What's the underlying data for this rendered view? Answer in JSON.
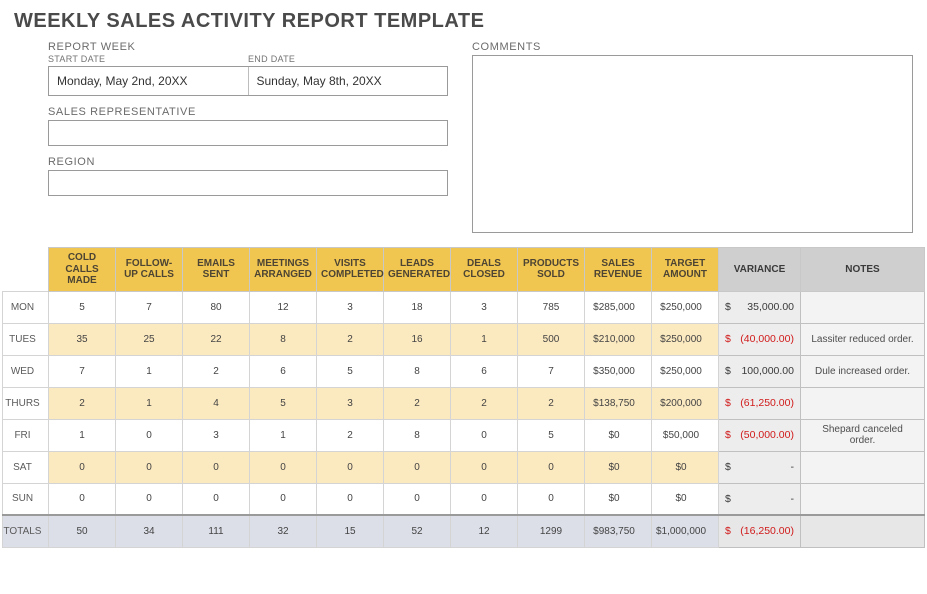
{
  "title": "WEEKLY SALES ACTIVITY REPORT TEMPLATE",
  "labels": {
    "report_week": "REPORT WEEK",
    "start_date": "START DATE",
    "end_date": "END DATE",
    "sales_rep": "SALES REPRESENTATIVE",
    "region": "REGION",
    "comments": "COMMENTS"
  },
  "fields": {
    "start_date": "Monday, May 2nd, 20XX",
    "end_date": "Sunday, May 8th, 20XX",
    "sales_rep": "",
    "region": "",
    "comments": ""
  },
  "colors": {
    "header_bg": "#f0c651",
    "gray_header_bg": "#cfcfcf",
    "row_odd_bg": "#fbe9c0",
    "variance_bg": "#ededed",
    "notes_bg": "#f3f3f3",
    "totals_bg": "#dcdfe8",
    "totals_variance_bg": "#e7e7e7",
    "neg_color": "#d11a1a"
  },
  "table": {
    "columns": [
      "COLD CALLS MADE",
      "FOLLOW-UP CALLS",
      "EMAILS SENT",
      "MEETINGS ARRANGED",
      "VISITS COMPLETED",
      "LEADS GENERATED",
      "DEALS CLOSED",
      "PRODUCTS SOLD",
      "SALES REVENUE",
      "TARGET AMOUNT",
      "VARIANCE",
      "NOTES"
    ],
    "days": [
      "MON",
      "TUES",
      "WED",
      "THURS",
      "FRI",
      "SAT",
      "SUN"
    ],
    "totals_label": "TOTALS",
    "rows": [
      {
        "day": "MON",
        "cells": [
          "5",
          "7",
          "80",
          "12",
          "3",
          "18",
          "3",
          "785",
          "$285,000",
          "$250,000"
        ],
        "variance": {
          "text": "35,000.00",
          "neg": false
        },
        "note": ""
      },
      {
        "day": "TUES",
        "cells": [
          "35",
          "25",
          "22",
          "8",
          "2",
          "16",
          "1",
          "500",
          "$210,000",
          "$250,000"
        ],
        "variance": {
          "text": "(40,000.00)",
          "neg": true
        },
        "note": "Lassiter reduced order."
      },
      {
        "day": "WED",
        "cells": [
          "7",
          "1",
          "2",
          "6",
          "5",
          "8",
          "6",
          "7",
          "$350,000",
          "$250,000"
        ],
        "variance": {
          "text": "100,000.00",
          "neg": false
        },
        "note": "Dule increased order."
      },
      {
        "day": "THURS",
        "cells": [
          "2",
          "1",
          "4",
          "5",
          "3",
          "2",
          "2",
          "2",
          "$138,750",
          "$200,000"
        ],
        "variance": {
          "text": "(61,250.00)",
          "neg": true
        },
        "note": ""
      },
      {
        "day": "FRI",
        "cells": [
          "1",
          "0",
          "3",
          "1",
          "2",
          "8",
          "0",
          "5",
          "$0",
          "$50,000"
        ],
        "variance": {
          "text": "(50,000.00)",
          "neg": true
        },
        "note": "Shepard canceled order."
      },
      {
        "day": "SAT",
        "cells": [
          "0",
          "0",
          "0",
          "0",
          "0",
          "0",
          "0",
          "0",
          "$0",
          "$0"
        ],
        "variance": {
          "text": "-",
          "neg": false
        },
        "note": ""
      },
      {
        "day": "SUN",
        "cells": [
          "0",
          "0",
          "0",
          "0",
          "0",
          "0",
          "0",
          "0",
          "$0",
          "$0"
        ],
        "variance": {
          "text": "-",
          "neg": false
        },
        "note": ""
      }
    ],
    "totals": {
      "cells": [
        "50",
        "34",
        "111",
        "32",
        "15",
        "52",
        "12",
        "1299",
        "$983,750",
        "$1,000,000"
      ],
      "variance": {
        "text": "(16,250.00)",
        "neg": true
      },
      "note": ""
    },
    "money_column_indices": [
      8,
      9
    ]
  }
}
